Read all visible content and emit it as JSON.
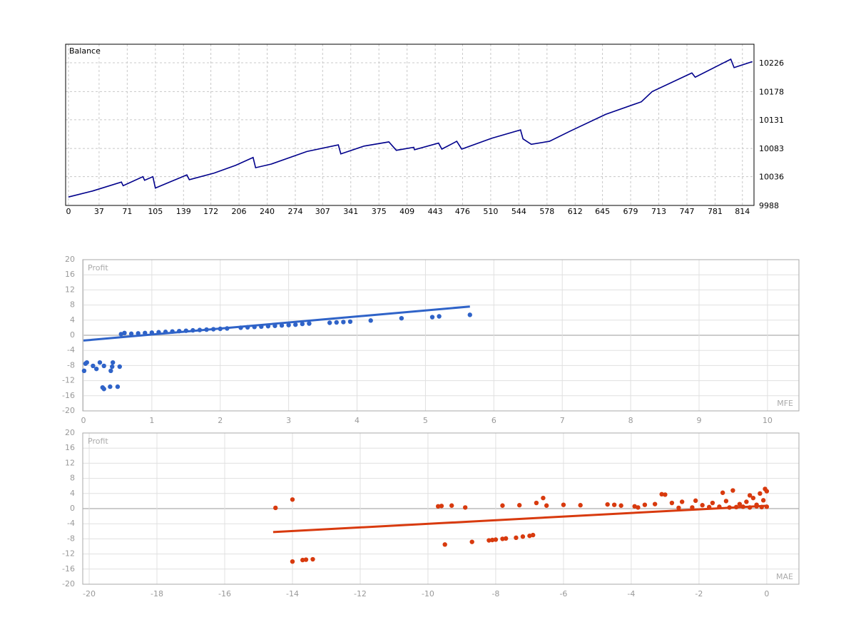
{
  "chart_data": [
    {
      "type": "line",
      "title": "Balance",
      "color": "#00008b",
      "x": [
        0,
        29,
        64,
        66,
        90,
        92,
        102,
        105,
        143,
        146,
        176,
        202,
        223,
        226,
        245,
        288,
        326,
        329,
        357,
        387,
        396,
        417,
        418,
        447,
        451,
        469,
        475,
        511,
        546,
        549,
        559,
        581,
        606,
        649,
        692,
        705,
        753,
        757,
        800,
        804,
        826
      ],
      "values": [
        10002,
        10012,
        10027,
        10021,
        10036,
        10030,
        10036,
        10017,
        10039,
        10031,
        10042,
        10055,
        10068,
        10051,
        10057,
        10078,
        10089,
        10074,
        10087,
        10094,
        10080,
        10085,
        10081,
        10092,
        10082,
        10095,
        10082,
        10100,
        10114,
        10099,
        10090,
        10095,
        10112,
        10140,
        10161,
        10178,
        10209,
        10202,
        10232,
        10218,
        10228
      ],
      "xlim": [
        -3.4,
        828
      ],
      "xticks": [
        0,
        37,
        71,
        105,
        139,
        172,
        206,
        240,
        274,
        307,
        341,
        375,
        409,
        443,
        476,
        510,
        544,
        578,
        612,
        645,
        679,
        713,
        747,
        781,
        814
      ],
      "ylim": [
        9988,
        10257
      ],
      "yticks": [
        9988,
        10036,
        10083,
        10131,
        10178,
        10226
      ],
      "grid": true
    },
    {
      "type": "scatter",
      "y_label": "Profit",
      "x_label": "MFE",
      "color": "#2f63c8",
      "x": [
        0.55,
        0.6,
        0.7,
        0.8,
        0.9,
        1.0,
        1.1,
        1.2,
        1.3,
        1.4,
        1.5,
        1.6,
        1.7,
        1.8,
        1.9,
        2.0,
        2.1,
        2.3,
        2.4,
        2.5,
        2.6,
        2.7,
        2.8,
        2.9,
        3.0,
        3.1,
        3.2,
        3.3,
        3.6,
        3.7,
        3.8,
        3.9,
        4.2,
        4.65,
        5.1,
        5.2,
        5.65,
        0.01,
        0.03,
        0.05,
        0.14,
        0.19,
        0.24,
        0.3,
        0.28,
        0.3,
        0.4,
        0.43,
        0.42,
        0.39,
        0.5,
        0.53
      ],
      "values": [
        0.3,
        0.6,
        0.4,
        0.5,
        0.6,
        0.7,
        0.8,
        0.9,
        1.0,
        1.1,
        1.2,
        1.3,
        1.4,
        1.5,
        1.6,
        1.7,
        1.8,
        2.0,
        2.1,
        2.2,
        2.3,
        2.4,
        2.5,
        2.6,
        2.7,
        2.8,
        3.0,
        3.1,
        3.3,
        3.4,
        3.5,
        3.6,
        3.9,
        4.5,
        4.8,
        5.0,
        5.4,
        -9.4,
        -7.5,
        -7.2,
        -8.1,
        -8.9,
        -7.2,
        -8.1,
        -13.8,
        -14.2,
        -9.4,
        -7.2,
        -8.3,
        -13.6,
        -13.6,
        -8.3
      ],
      "trendline": {
        "x": [
          0,
          5.65
        ],
        "y": [
          -1.4,
          7.6
        ]
      },
      "xlim": [
        -0.01,
        10.46
      ],
      "xticks": [
        0,
        1,
        2,
        3,
        4,
        5,
        6,
        7,
        8,
        9,
        10
      ],
      "ylim": [
        -20,
        20
      ],
      "yticks": [
        -20,
        -16,
        -12,
        -8,
        -4,
        0,
        4,
        8,
        12,
        16,
        20
      ],
      "grid": true
    },
    {
      "type": "scatter",
      "y_label": "Profit",
      "x_label": "MAE",
      "color": "#d83a0e",
      "x": [
        -14.5,
        -14,
        -14,
        -13.7,
        -13.6,
        -13.4,
        -9.7,
        -9.6,
        -9.3,
        -8.9,
        -9.5,
        -8.7,
        -8.2,
        -8.1,
        -8.0,
        -7.8,
        -7.7,
        -7.4,
        -7.2,
        -7.0,
        -6.9,
        -7.8,
        -7.3,
        -6.6,
        -6.8,
        -6.5,
        -6,
        -5.5,
        -4.7,
        -4.5,
        -4.3,
        -3.9,
        -3.6,
        -3.3,
        -3.1,
        -3.0,
        -2.8,
        -2.5,
        -2.1,
        -1.9,
        -1.6,
        -1.3,
        -1.2,
        -1.0,
        -0.8,
        -0.6,
        -0.5,
        -0.4,
        -0.3,
        -0.2,
        -0.1,
        -0.05,
        0,
        0,
        -0.15,
        -0.3,
        -0.5,
        -0.7,
        -0.9,
        -1.1,
        -1.4,
        -1.7,
        -2.2,
        -2.6,
        -3.8
      ],
      "values": [
        0.2,
        2.4,
        -14,
        -13.6,
        -13.5,
        -13.4,
        0.6,
        0.7,
        0.8,
        0.3,
        -9.5,
        -8.8,
        -8.4,
        -8.3,
        -8.2,
        -8,
        -7.9,
        -7.7,
        -7.4,
        -7.2,
        -7,
        0.8,
        0.9,
        2.8,
        1.5,
        0.8,
        1,
        0.9,
        1.1,
        1.0,
        0.8,
        0.6,
        1.0,
        1.2,
        3.8,
        3.7,
        1.5,
        1.8,
        2.1,
        0.9,
        1.5,
        4.2,
        2.0,
        4.8,
        1.2,
        1.8,
        3.5,
        2.8,
        1.0,
        4.0,
        2.2,
        5.2,
        4.6,
        0.5,
        0.4,
        0.6,
        0.3,
        0.5,
        0.4,
        0.3,
        0.5,
        0.4,
        0.3,
        0.2,
        0.3
      ],
      "trendline": {
        "x": [
          -14.57,
          0
        ],
        "y": [
          -6.2,
          0.75
        ]
      },
      "xlim": [
        -20.19,
        0.95
      ],
      "xticks": [
        -20,
        -18,
        -16,
        -14,
        -12,
        -10,
        -8,
        -6,
        -4,
        -2,
        0
      ],
      "ylim": [
        -20,
        20
      ],
      "yticks": [
        -20,
        -16,
        -12,
        -8,
        -4,
        0,
        4,
        8,
        12,
        16,
        20
      ],
      "grid": true
    }
  ]
}
